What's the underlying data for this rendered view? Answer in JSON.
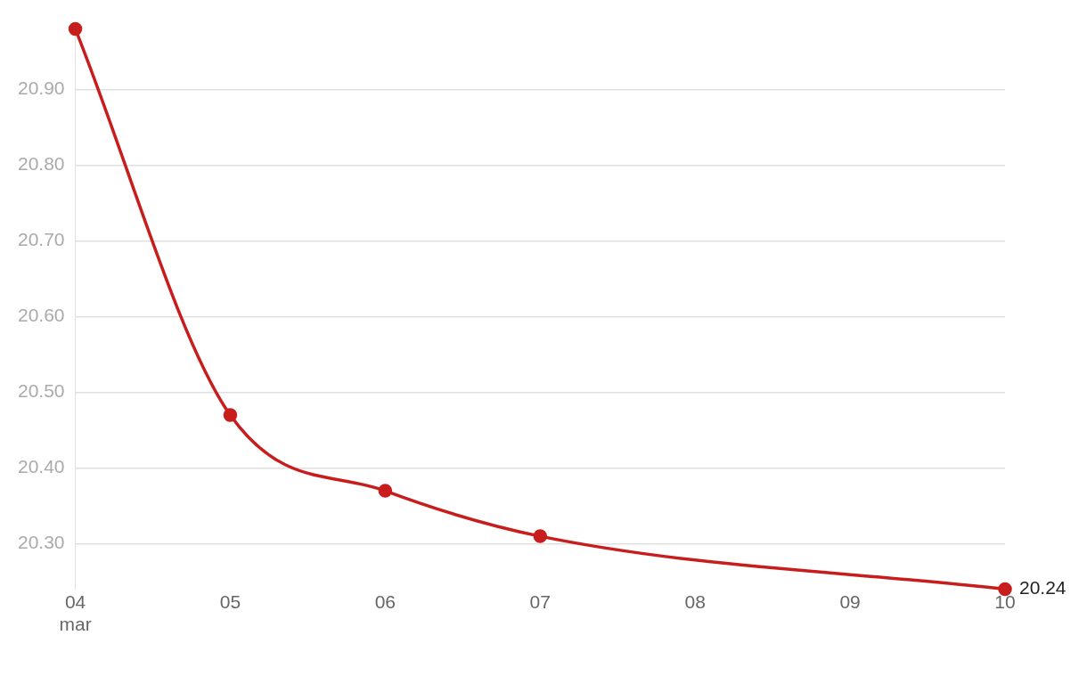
{
  "chart_data": {
    "type": "line",
    "x": [
      "--03-04",
      "--03-05",
      "--03-06",
      "--03-07",
      "--03-10"
    ],
    "series": [
      {
        "color": "#c71e1d",
        "values": [
          20.98,
          20.47,
          20.37,
          20.31,
          20.24
        ],
        "value_labels": [
          null,
          null,
          null,
          null,
          "20.24"
        ]
      }
    ],
    "xticks": [
      {
        "value": "--03-04",
        "label": "04\nmar"
      },
      {
        "value": "--03-05",
        "label": "05"
      },
      {
        "value": "--03-06",
        "label": "06"
      },
      {
        "value": "--03-07",
        "label": "07"
      },
      {
        "value": "--03-08",
        "label": "08"
      },
      {
        "value": "--03-09",
        "label": "09"
      },
      {
        "value": "--03-10",
        "label": "10"
      }
    ],
    "xlim": [
      "--03-04",
      "--03-10"
    ],
    "ylim": [
      20.24,
      20.98
    ],
    "yticks": [
      {
        "value": 20.3,
        "label": "20.30"
      },
      {
        "value": 20.4,
        "label": "20.40"
      },
      {
        "value": 20.5,
        "label": "20.50"
      },
      {
        "value": 20.6,
        "label": "20.60"
      },
      {
        "value": 20.7,
        "label": "20.70"
      },
      {
        "value": 20.8,
        "label": "20.80"
      },
      {
        "value": 20.9,
        "label": "20.90"
      }
    ],
    "grid": "y",
    "legend": false,
    "marker": "circle",
    "line_style": "solid"
  }
}
